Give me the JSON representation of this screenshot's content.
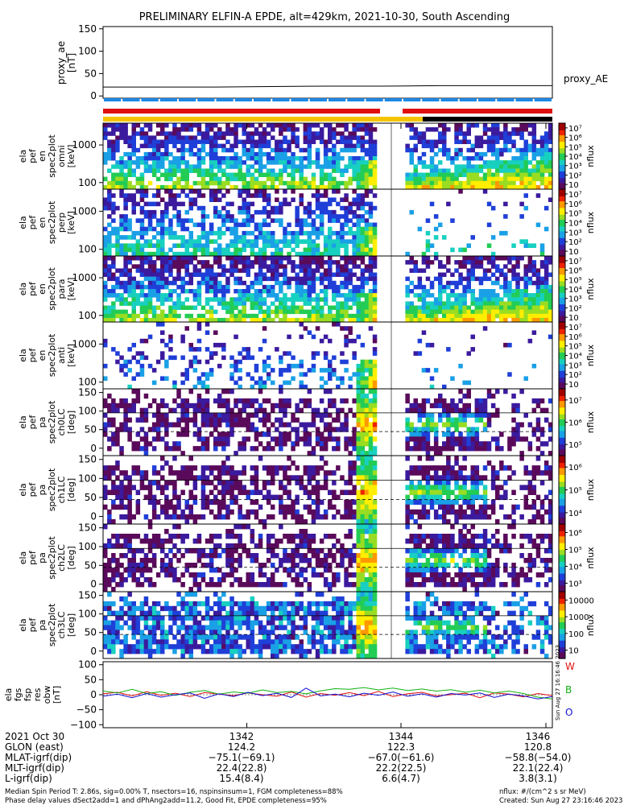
{
  "title": "PRELIMINARY ELFIN-A EPDE, alt=429km, 2021-10-30, South Ascending",
  "colors": {
    "bar_blue": "#1e88e5",
    "bar_red": "#e01010",
    "bar_yellow": "#f5c400",
    "bar_black": "#000000",
    "colorbar": [
      "#ffffff",
      "#5a0a5a",
      "#3b1a9e",
      "#1f3fd8",
      "#1aa0e6",
      "#18d0c0",
      "#22cc55",
      "#99dd22",
      "#ffee00",
      "#ff9900",
      "#ee2200",
      "#a00000"
    ],
    "line_w": "#e01010",
    "line_b": "#10b010",
    "line_o": "#1010d0"
  },
  "chart_data": [
    {
      "type": "line",
      "panel": "proxy_ae",
      "ylabel_lines": [
        "proxy_ae",
        "[nT]"
      ],
      "yticks": [
        "150",
        "100",
        "50",
        "0"
      ],
      "ylim": [
        -5,
        155
      ],
      "legend": "proxy_AE",
      "x": [
        0,
        0.5,
        1,
        1.5,
        2,
        2.5,
        3,
        3.5,
        4
      ],
      "values": [
        20,
        20,
        20,
        21,
        22,
        22,
        23,
        23,
        23
      ]
    },
    {
      "type": "heatmap",
      "panel": "ela pef en spec2plot omni",
      "ylabel_lines": [
        "ela",
        "pef",
        "en",
        "spec2plot",
        "omni",
        "[keV]"
      ],
      "yticks": [
        "1000",
        "100"
      ],
      "colorbar_label": "nflux",
      "colorbar_ticks": [
        "10",
        "10²",
        "10³",
        "10⁴",
        "10⁵",
        "10⁶",
        "10⁷"
      ],
      "scale": "log"
    },
    {
      "type": "heatmap",
      "panel": "ela pef en spec2plot perp",
      "ylabel_lines": [
        "ela",
        "pef",
        "en",
        "spec2plot",
        "perp",
        "[keV]"
      ],
      "yticks": [
        "1000",
        "100"
      ],
      "colorbar_label": "nflux",
      "colorbar_ticks": [
        "10",
        "10²",
        "10³",
        "10⁴",
        "10⁵",
        "10⁶",
        "10⁷"
      ],
      "scale": "log"
    },
    {
      "type": "heatmap",
      "panel": "ela pef en spec2plot para",
      "ylabel_lines": [
        "ela",
        "pef",
        "en",
        "spec2plot",
        "para",
        "[keV]"
      ],
      "yticks": [
        "1000",
        "100"
      ],
      "colorbar_label": "nflux",
      "colorbar_ticks": [
        "10",
        "10²",
        "10³",
        "10⁴",
        "10⁵",
        "10⁶",
        "10⁷"
      ],
      "scale": "log"
    },
    {
      "type": "heatmap",
      "panel": "ela pef en spec2plot anti",
      "ylabel_lines": [
        "ela",
        "pef",
        "en",
        "spec2plot",
        "anti",
        "[keV]"
      ],
      "yticks": [
        "1000",
        "100"
      ],
      "colorbar_label": "nflux",
      "colorbar_ticks": [
        "10",
        "10²",
        "10³",
        "10⁴",
        "10⁵",
        "10⁶",
        "10⁷"
      ],
      "scale": "log"
    },
    {
      "type": "heatmap",
      "panel": "ela pef pa spec2plot ch0LC",
      "ylabel_lines": [
        "ela",
        "pef",
        "pa",
        "spec2plot",
        "ch0LC",
        "[deg]"
      ],
      "yticks": [
        "150",
        "100",
        "50",
        "0"
      ],
      "colorbar_label": "nflux",
      "colorbar_ticks": [
        "10⁵",
        "10⁶",
        "10⁷"
      ],
      "scale": "log"
    },
    {
      "type": "heatmap",
      "panel": "ela pef pa spec2plot ch1LC",
      "ylabel_lines": [
        "ela",
        "pef",
        "pa",
        "spec2plot",
        "ch1LC",
        "[deg]"
      ],
      "yticks": [
        "150",
        "100",
        "50",
        "0"
      ],
      "colorbar_label": "nflux",
      "colorbar_ticks": [
        "10⁴",
        "10⁵",
        "10⁶"
      ],
      "scale": "log"
    },
    {
      "type": "heatmap",
      "panel": "ela pef pa spec2plot ch2LC",
      "ylabel_lines": [
        "ela",
        "pef",
        "pa",
        "spec2plot",
        "ch2LC",
        "[deg]"
      ],
      "yticks": [
        "150",
        "100",
        "50",
        "0"
      ],
      "colorbar_label": "nflux",
      "colorbar_ticks": [
        "10³",
        "10⁴",
        "10⁵",
        "10⁶"
      ],
      "scale": "log"
    },
    {
      "type": "heatmap",
      "panel": "ela pef pa spec2plot ch3LC",
      "ylabel_lines": [
        "ela",
        "pef",
        "pa",
        "spec2plot",
        "ch3LC",
        "[deg]"
      ],
      "yticks": [
        "150",
        "100",
        "50",
        "0"
      ],
      "colorbar_label": "nflux",
      "colorbar_ticks": [
        "10",
        "100",
        "1000",
        "10000"
      ],
      "scale": "log"
    },
    {
      "type": "line",
      "panel": "ela fgs fsp res obw",
      "ylabel_lines": [
        "ela",
        "fgs",
        "fsp",
        "res",
        "obw",
        "[nT]"
      ],
      "yticks": [
        "100",
        "50",
        "0",
        "−50",
        "−100"
      ],
      "ylim": [
        -110,
        110
      ],
      "legend_entries": [
        "W",
        "B",
        "O"
      ],
      "series": [
        {
          "name": "W",
          "values": [
            3,
            8,
            -4,
            10,
            -2,
            5,
            -6,
            7,
            2,
            -3,
            6,
            0,
            -5,
            9,
            -8,
            4,
            -2,
            7,
            -3,
            11,
            -6,
            3,
            8,
            -4,
            0,
            5,
            -10,
            6,
            2,
            -7,
            4,
            -3
          ]
        },
        {
          "name": "B",
          "values": [
            12,
            6,
            18,
            4,
            10,
            -2,
            8,
            14,
            2,
            9,
            5,
            16,
            7,
            11,
            3,
            13,
            20,
            18,
            24,
            16,
            22,
            14,
            19,
            12,
            17,
            8,
            15,
            6,
            12,
            4,
            -8,
            -14
          ]
        },
        {
          "name": "O",
          "values": [
            -5,
            2,
            -10,
            4,
            -8,
            0,
            6,
            -12,
            3,
            -6,
            8,
            -3,
            5,
            -9,
            22,
            -4,
            2,
            -7,
            5,
            -2,
            9,
            -5,
            3,
            -8,
            4,
            -1,
            6,
            -9,
            2,
            -4,
            -14,
            -6
          ]
        }
      ]
    }
  ],
  "x_axis": {
    "tick_labels": [
      "1342",
      "1344",
      "1346"
    ],
    "rows": [
      {
        "label": "2021 Oct 30",
        "values": [
          "1342",
          "1344",
          "1346"
        ]
      },
      {
        "label": "GLON (east)",
        "values": [
          "124.2",
          "122.3",
          "120.8"
        ]
      },
      {
        "label": "MLAT-igrf(dip)",
        "values": [
          "−75.1(−69.1)",
          "−67.0(−61.6)",
          "−58.8(−54.0)"
        ]
      },
      {
        "label": "MLT-igrf(dip)",
        "values": [
          "22.4(22.8)",
          "22.2(22.5)",
          "22.1(22.4)"
        ]
      },
      {
        "label": "L-igrf(dip)",
        "values": [
          "15.4(8.4)",
          "6.6(4.7)",
          "3.8(3.1)"
        ]
      }
    ]
  },
  "footer": {
    "left_line1": "Median Spin Period T: 2.86s, sig=0.00% T, nsectors=16, nspinsinsum=1, FGM completeness=88%",
    "left_line2": "Phase delay values dSect2add=1 and dPhAng2add=11.2, Good Fit, EPDE completeness=95%",
    "right_line1": "nflux: #/(cm^2 s sr MeV)",
    "right_line2": "Created: Sun Aug 27 23:16:46 2023",
    "side_stamp": "Sun Aug 27 16:16:46 2023"
  }
}
